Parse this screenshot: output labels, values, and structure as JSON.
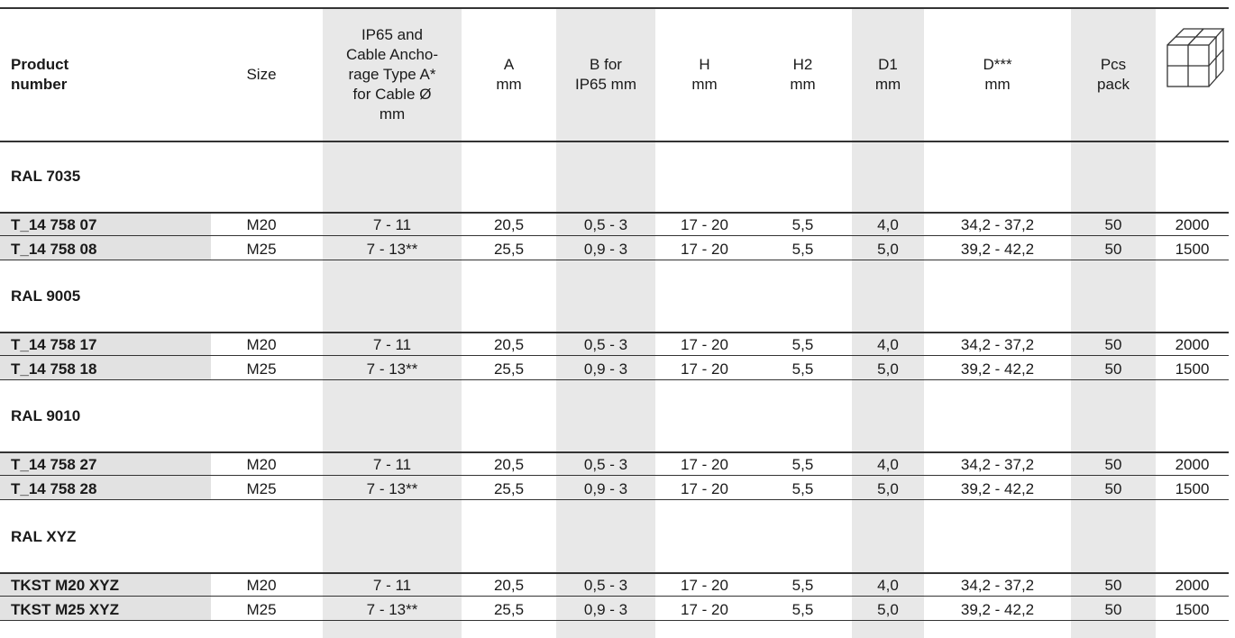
{
  "headers": {
    "product": "Product\nnumber",
    "size": "Size",
    "ip65": "IP65 and\nCable Ancho-\nrage Type A*\nfor Cable Ø\nmm",
    "a": "A\nmm",
    "b": "B for\nIP65 mm",
    "h": "H\nmm",
    "h2": "H2\nmm",
    "d1": "D1\nmm",
    "d": "D***\nmm",
    "pcs": "Pcs\npack",
    "box_icon": "box-icon"
  },
  "sections": [
    {
      "title": "RAL 7035",
      "rows": [
        {
          "pn": "T_14 758 07",
          "size": "M20",
          "ip": "7 - 11",
          "a": "20,5",
          "b": "0,5 - 3",
          "h": "17 - 20",
          "h2": "5,5",
          "d1": "4,0",
          "d": "34,2 - 37,2",
          "pcs": "50",
          "box": "2000"
        },
        {
          "pn": "T_14 758 08",
          "size": "M25",
          "ip": "7 - 13**",
          "a": "25,5",
          "b": "0,9 - 3",
          "h": "17 - 20",
          "h2": "5,5",
          "d1": "5,0",
          "d": "39,2 - 42,2",
          "pcs": "50",
          "box": "1500"
        }
      ]
    },
    {
      "title": "RAL 9005",
      "rows": [
        {
          "pn": "T_14 758 17",
          "size": "M20",
          "ip": "7 - 11",
          "a": "20,5",
          "b": "0,5 - 3",
          "h": "17 - 20",
          "h2": "5,5",
          "d1": "4,0",
          "d": "34,2 - 37,2",
          "pcs": "50",
          "box": "2000"
        },
        {
          "pn": "T_14 758 18",
          "size": "M25",
          "ip": "7 - 13**",
          "a": "25,5",
          "b": "0,9 - 3",
          "h": "17 - 20",
          "h2": "5,5",
          "d1": "5,0",
          "d": "39,2 - 42,2",
          "pcs": "50",
          "box": "1500"
        }
      ]
    },
    {
      "title": "RAL 9010",
      "rows": [
        {
          "pn": "T_14 758 27",
          "size": "M20",
          "ip": "7 - 11",
          "a": "20,5",
          "b": "0,5 - 3",
          "h": "17 - 20",
          "h2": "5,5",
          "d1": "4,0",
          "d": "34,2 - 37,2",
          "pcs": "50",
          "box": "2000"
        },
        {
          "pn": "T_14 758 28",
          "size": "M25",
          "ip": "7 - 13**",
          "a": "25,5",
          "b": "0,9 - 3",
          "h": "17 - 20",
          "h2": "5,5",
          "d1": "5,0",
          "d": "39,2 - 42,2",
          "pcs": "50",
          "box": "1500"
        }
      ]
    },
    {
      "title": "RAL XYZ",
      "rows": [
        {
          "pn": "TKST M20 XYZ",
          "size": "M20",
          "ip": "7 - 11",
          "a": "20,5",
          "b": "0,5 - 3",
          "h": "17 - 20",
          "h2": "5,5",
          "d1": "4,0",
          "d": "34,2 - 37,2",
          "pcs": "50",
          "box": "2000"
        },
        {
          "pn": "TKST M25 XYZ",
          "size": "M25",
          "ip": "7 - 13**",
          "a": "25,5",
          "b": "0,9 - 3",
          "h": "17 - 20",
          "h2": "5,5",
          "d1": "5,0",
          "d": "39,2 - 42,2",
          "pcs": "50",
          "box": "1500"
        }
      ]
    }
  ]
}
